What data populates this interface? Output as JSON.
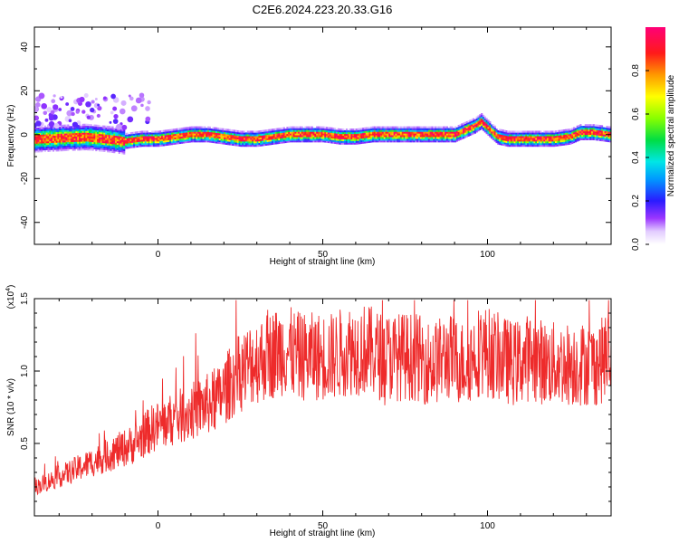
{
  "figure": {
    "title": "C2E6.2024.223.20.33.G16"
  },
  "chart_data": [
    {
      "type": "heatmap",
      "xlabel": "Height of straight line (km)",
      "ylabel": "Frequency (Hz)",
      "xlim": [
        -37.5,
        137.5
      ],
      "ylim": [
        -50,
        49
      ],
      "xticks": [
        0,
        50,
        100
      ],
      "yticks": [
        -40,
        -20,
        0,
        20,
        40
      ],
      "colorbar": {
        "label": "Normalized spectral amplitude",
        "range": [
          0,
          1
        ],
        "ticks": [
          "0.0",
          "0.2",
          "0.4",
          "0.6",
          "0.8"
        ],
        "tick_values": [
          0,
          0.2,
          0.4,
          0.6,
          0.8
        ]
      },
      "ridge": {
        "x": [
          -37,
          -30,
          -22,
          -15,
          -10,
          -5,
          0,
          5,
          10,
          15,
          20,
          25,
          30,
          35,
          40,
          45,
          50,
          55,
          60,
          65,
          70,
          75,
          80,
          85,
          90,
          93,
          96,
          98,
          100,
          103,
          106,
          110,
          115,
          120,
          125,
          128,
          132,
          137
        ],
        "y": [
          -2,
          -1.5,
          -1,
          -2,
          -3,
          -2,
          -2,
          -1,
          0,
          0,
          -1,
          -2,
          -2,
          -1,
          0,
          0,
          0,
          -1,
          -1,
          0,
          0,
          0,
          0,
          0,
          0,
          2,
          4,
          6,
          3,
          -1,
          -2,
          -2,
          -2,
          -2,
          -1,
          1,
          1,
          0
        ]
      },
      "grid": false
    },
    {
      "type": "line",
      "xlabel": "Height of straight line (km)",
      "ylabel": "SNR (10 * v/v)",
      "y_multiplier": "(x10",
      "y_multiplier_exp": "4",
      "y_multiplier_close": ")",
      "xlim": [
        -37.5,
        137.5
      ],
      "ylim": [
        0,
        15000
      ],
      "xticks": [
        0,
        50,
        100
      ],
      "yticks": [
        5000,
        10000,
        15000
      ],
      "ytick_labels": [
        "0.5",
        "1.0",
        "1.5"
      ],
      "series": [
        {
          "color": "#ee2b2b",
          "x": [
            -37,
            -32,
            -27,
            -22,
            -17,
            -12,
            -7,
            -2,
            3,
            8,
            13,
            18,
            23,
            28,
            33,
            38,
            43,
            48,
            53,
            58,
            63,
            68,
            73,
            78,
            83,
            88,
            93,
            98,
            103,
            108,
            113,
            118,
            123,
            128,
            133,
            137
          ],
          "y": [
            2000,
            2500,
            3000,
            3500,
            4000,
            4500,
            5000,
            6000,
            6500,
            7000,
            7500,
            8000,
            9500,
            10500,
            11000,
            11500,
            11000,
            11000,
            11000,
            11500,
            11500,
            11000,
            11000,
            11000,
            10500,
            11000,
            10500,
            11500,
            11000,
            10500,
            11000,
            10500,
            10500,
            10500,
            10500,
            11000
          ]
        }
      ],
      "grid": false
    }
  ]
}
